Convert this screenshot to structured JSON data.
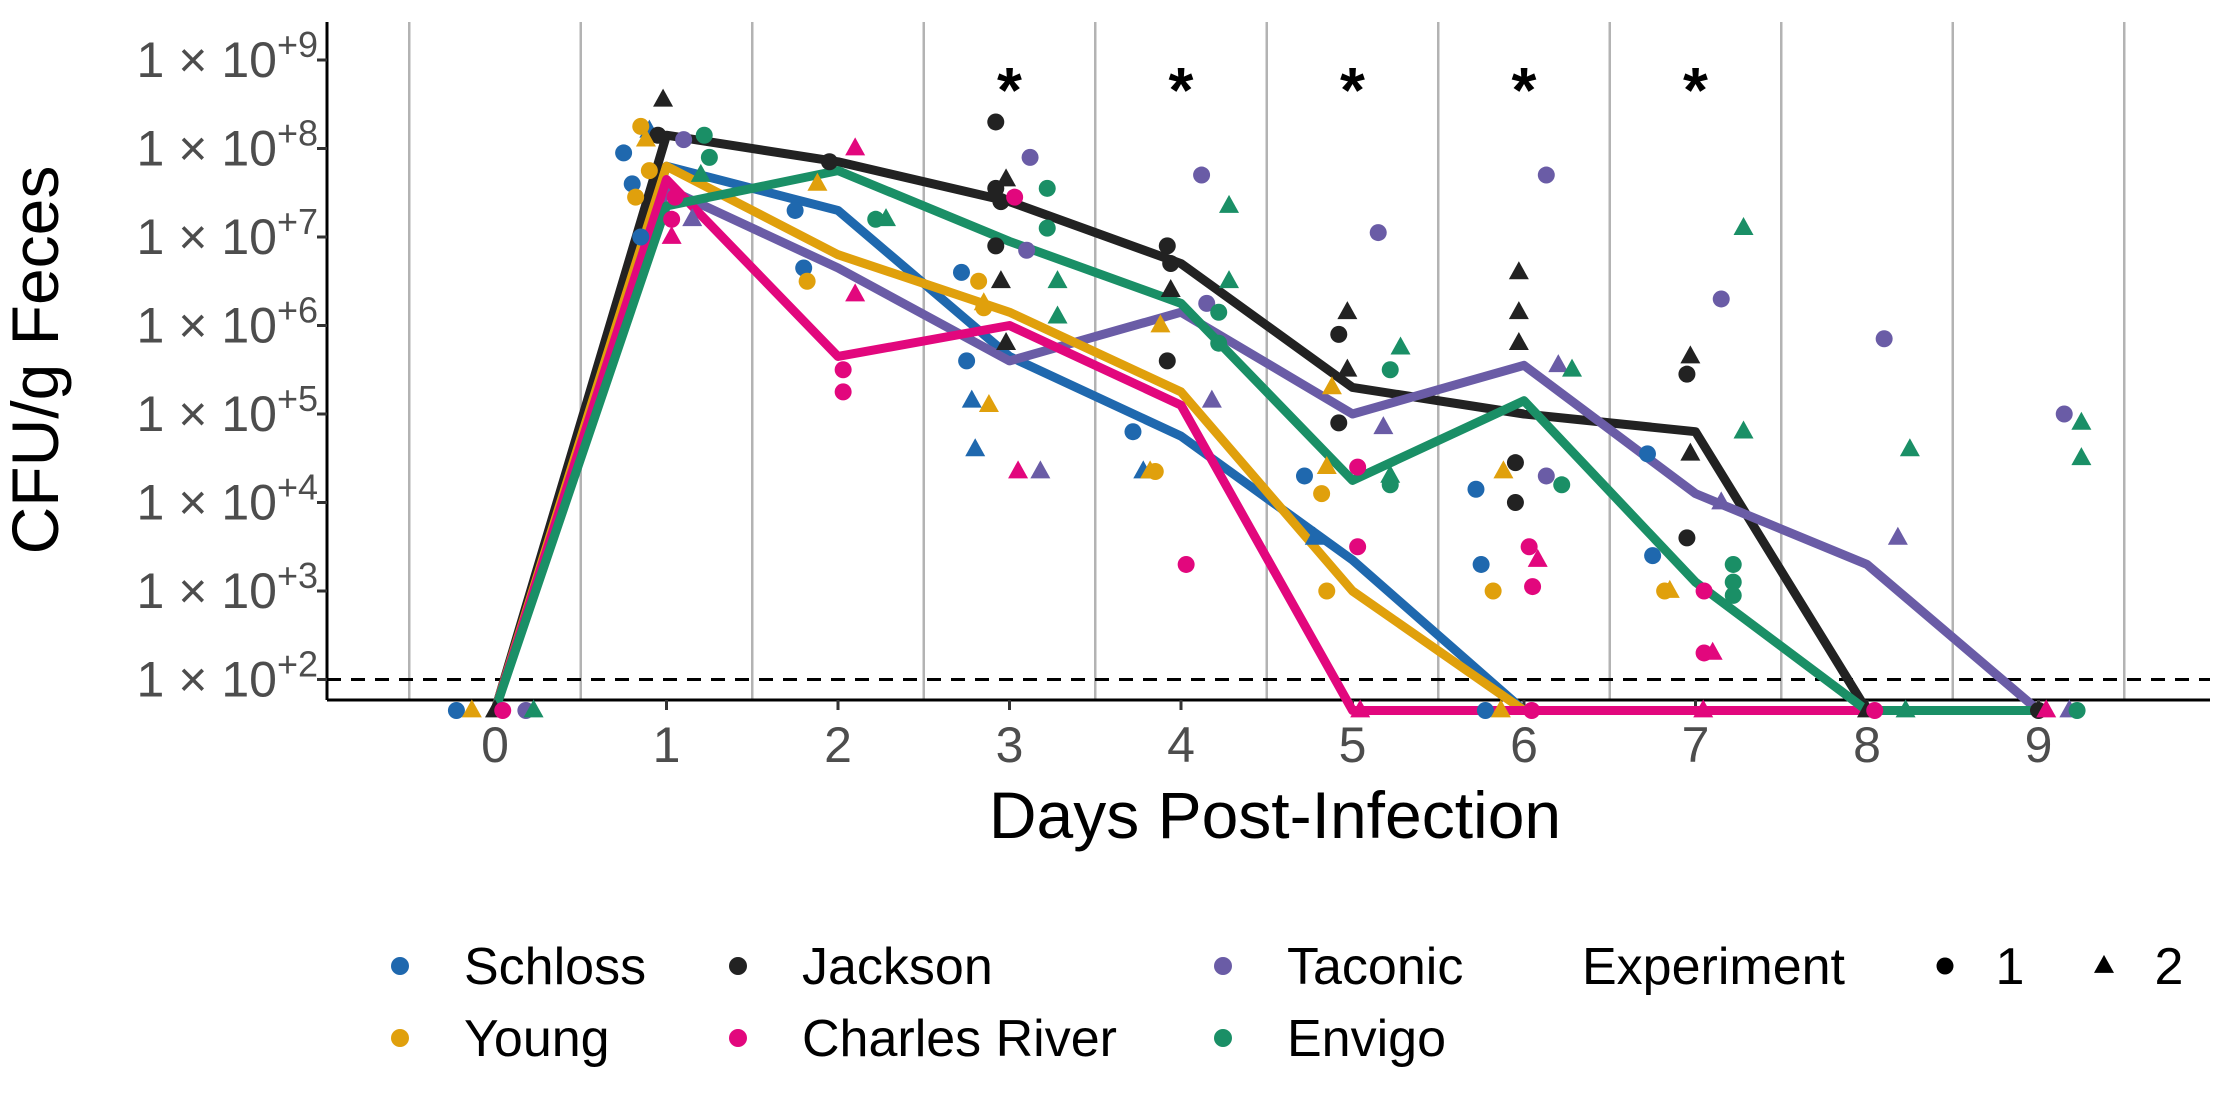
{
  "chart_data": {
    "type": "line",
    "title": "",
    "xlabel": "Days Post-Infection",
    "ylabel": "CFU/g Feces",
    "x_ticks": [
      "0",
      "1",
      "2",
      "3",
      "4",
      "5",
      "6",
      "7",
      "8",
      "9"
    ],
    "xlim": [
      -1,
      9.8
    ],
    "y_scale": "log10",
    "ylim_log10": [
      1.65,
      9.35
    ],
    "y_ticks": [
      {
        "exp": 2,
        "label": "1 × 10",
        "sup": "+2"
      },
      {
        "exp": 3,
        "label": "1 × 10",
        "sup": "+3"
      },
      {
        "exp": 4,
        "label": "1 × 10",
        "sup": "+4"
      },
      {
        "exp": 5,
        "label": "1 × 10",
        "sup": "+5"
      },
      {
        "exp": 6,
        "label": "1 × 10",
        "sup": "+6"
      },
      {
        "exp": 7,
        "label": "1 × 10",
        "sup": "+7"
      },
      {
        "exp": 8,
        "label": "1 × 10",
        "sup": "+8"
      },
      {
        "exp": 9,
        "label": "1 × 10",
        "sup": "+9"
      }
    ],
    "limit_of_detection_log10": 2.0,
    "significance_days": [
      3,
      4,
      5,
      6,
      7
    ],
    "significance_symbol": "*",
    "grid": "vertical gridlines between days",
    "legend_position": "bottom",
    "series": [
      {
        "name": "Schloss",
        "color": "#1F68AE",
        "x": [
          0,
          1,
          2,
          3,
          4,
          5,
          6
        ],
        "log10_values": [
          1.65,
          7.8,
          7.3,
          5.65,
          4.75,
          3.35,
          1.65
        ]
      },
      {
        "name": "Jackson",
        "color": "#222222",
        "x": [
          0,
          1,
          2,
          3,
          4,
          5,
          6,
          7,
          8,
          9
        ],
        "log10_values": [
          1.65,
          8.15,
          7.85,
          7.4,
          6.7,
          5.3,
          5.0,
          4.8,
          1.65,
          1.65
        ]
      },
      {
        "name": "Taconic",
        "color": "#6A5CA6",
        "x": [
          0,
          1,
          2,
          3,
          4,
          5,
          6,
          7,
          8,
          9
        ],
        "log10_values": [
          1.65,
          7.55,
          6.65,
          5.6,
          6.15,
          5.0,
          5.55,
          4.1,
          3.3,
          1.65
        ]
      },
      {
        "name": "Young",
        "color": "#E0A00C",
        "x": [
          0,
          1,
          2,
          3,
          4,
          5,
          6
        ],
        "log10_values": [
          1.65,
          7.8,
          6.8,
          6.15,
          5.25,
          3.0,
          1.65
        ]
      },
      {
        "name": "Charles River",
        "color": "#E2077D",
        "x": [
          0,
          1,
          2,
          3,
          4,
          5,
          6,
          7,
          8,
          9
        ],
        "log10_values": [
          1.65,
          7.65,
          5.65,
          6.0,
          5.1,
          1.65,
          1.65,
          1.65,
          1.65,
          1.65
        ]
      },
      {
        "name": "Envigo",
        "color": "#1A8F66",
        "x": [
          0,
          1,
          2,
          3,
          4,
          5,
          6,
          7,
          8,
          9
        ],
        "log10_values": [
          1.65,
          7.35,
          7.75,
          6.95,
          6.25,
          4.25,
          5.15,
          3.1,
          1.65,
          1.65
        ]
      }
    ],
    "points": [
      {
        "s": 0,
        "d": 1,
        "o": -0.25,
        "v": 7.95,
        "e": 1
      },
      {
        "s": 0,
        "d": 1,
        "o": -0.2,
        "v": 7.6,
        "e": 1
      },
      {
        "s": 0,
        "d": 1,
        "o": -0.15,
        "v": 7.0,
        "e": 1
      },
      {
        "s": 0,
        "d": 1,
        "o": -0.1,
        "v": 8.2,
        "e": 2
      },
      {
        "s": 0,
        "d": 2,
        "o": -0.25,
        "v": 7.3,
        "e": 1
      },
      {
        "s": 0,
        "d": 2,
        "o": -0.2,
        "v": 6.65,
        "e": 1
      },
      {
        "s": 0,
        "d": 3,
        "o": -0.28,
        "v": 6.6,
        "e": 1
      },
      {
        "s": 0,
        "d": 3,
        "o": -0.25,
        "v": 5.6,
        "e": 1
      },
      {
        "s": 0,
        "d": 3,
        "o": -0.22,
        "v": 5.15,
        "e": 2
      },
      {
        "s": 0,
        "d": 3,
        "o": -0.2,
        "v": 4.6,
        "e": 2
      },
      {
        "s": 0,
        "d": 4,
        "o": -0.28,
        "v": 4.8,
        "e": 1
      },
      {
        "s": 0,
        "d": 4,
        "o": -0.22,
        "v": 4.35,
        "e": 2
      },
      {
        "s": 0,
        "d": 5,
        "o": -0.28,
        "v": 4.3,
        "e": 1
      },
      {
        "s": 0,
        "d": 5,
        "o": -0.22,
        "v": 3.6,
        "e": 2
      },
      {
        "s": 0,
        "d": 6,
        "o": -0.28,
        "v": 4.15,
        "e": 1
      },
      {
        "s": 0,
        "d": 6,
        "o": -0.25,
        "v": 3.3,
        "e": 1
      },
      {
        "s": 0,
        "d": 7,
        "o": -0.28,
        "v": 4.55,
        "e": 1
      },
      {
        "s": 0,
        "d": 7,
        "o": -0.25,
        "v": 3.4,
        "e": 1
      },
      {
        "s": 1,
        "d": 1,
        "o": -0.05,
        "v": 8.15,
        "e": 1
      },
      {
        "s": 1,
        "d": 1,
        "o": -0.02,
        "v": 8.55,
        "e": 2
      },
      {
        "s": 1,
        "d": 2,
        "o": -0.05,
        "v": 7.85,
        "e": 1
      },
      {
        "s": 1,
        "d": 3,
        "o": -0.08,
        "v": 8.3,
        "e": 1
      },
      {
        "s": 1,
        "d": 3,
        "o": -0.08,
        "v": 7.55,
        "e": 1
      },
      {
        "s": 1,
        "d": 3,
        "o": -0.05,
        "v": 7.4,
        "e": 1
      },
      {
        "s": 1,
        "d": 3,
        "o": -0.08,
        "v": 6.9,
        "e": 1
      },
      {
        "s": 1,
        "d": 3,
        "o": -0.02,
        "v": 7.65,
        "e": 2
      },
      {
        "s": 1,
        "d": 3,
        "o": -0.05,
        "v": 6.5,
        "e": 2
      },
      {
        "s": 1,
        "d": 3,
        "o": -0.02,
        "v": 5.8,
        "e": 2
      },
      {
        "s": 1,
        "d": 4,
        "o": -0.08,
        "v": 6.9,
        "e": 1
      },
      {
        "s": 1,
        "d": 4,
        "o": -0.06,
        "v": 6.7,
        "e": 1
      },
      {
        "s": 1,
        "d": 4,
        "o": -0.08,
        "v": 5.6,
        "e": 1
      },
      {
        "s": 1,
        "d": 4,
        "o": -0.06,
        "v": 6.4,
        "e": 2
      },
      {
        "s": 1,
        "d": 5,
        "o": -0.08,
        "v": 5.9,
        "e": 1
      },
      {
        "s": 1,
        "d": 5,
        "o": -0.08,
        "v": 4.9,
        "e": 1
      },
      {
        "s": 1,
        "d": 5,
        "o": -0.03,
        "v": 6.15,
        "e": 2
      },
      {
        "s": 1,
        "d": 5,
        "o": -0.03,
        "v": 5.5,
        "e": 2
      },
      {
        "s": 1,
        "d": 6,
        "o": -0.05,
        "v": 4.45,
        "e": 1
      },
      {
        "s": 1,
        "d": 6,
        "o": -0.05,
        "v": 4.0,
        "e": 1
      },
      {
        "s": 1,
        "d": 6,
        "o": -0.03,
        "v": 6.6,
        "e": 2
      },
      {
        "s": 1,
        "d": 6,
        "o": -0.03,
        "v": 6.15,
        "e": 2
      },
      {
        "s": 1,
        "d": 6,
        "o": -0.03,
        "v": 5.8,
        "e": 2
      },
      {
        "s": 1,
        "d": 7,
        "o": -0.05,
        "v": 5.45,
        "e": 1
      },
      {
        "s": 1,
        "d": 7,
        "o": -0.05,
        "v": 3.6,
        "e": 1
      },
      {
        "s": 1,
        "d": 7,
        "o": -0.03,
        "v": 5.65,
        "e": 2
      },
      {
        "s": 1,
        "d": 7,
        "o": -0.03,
        "v": 4.55,
        "e": 2
      },
      {
        "s": 2,
        "d": 1,
        "o": 0.1,
        "v": 8.1,
        "e": 1
      },
      {
        "s": 2,
        "d": 1,
        "o": 0.15,
        "v": 7.2,
        "e": 2
      },
      {
        "s": 2,
        "d": 3,
        "o": 0.12,
        "v": 7.9,
        "e": 1
      },
      {
        "s": 2,
        "d": 3,
        "o": 0.1,
        "v": 6.85,
        "e": 1
      },
      {
        "s": 2,
        "d": 3,
        "o": 0.18,
        "v": 4.35,
        "e": 2
      },
      {
        "s": 2,
        "d": 4,
        "o": 0.12,
        "v": 7.7,
        "e": 1
      },
      {
        "s": 2,
        "d": 4,
        "o": 0.15,
        "v": 6.25,
        "e": 1
      },
      {
        "s": 2,
        "d": 4,
        "o": 0.18,
        "v": 5.15,
        "e": 2
      },
      {
        "s": 2,
        "d": 5,
        "o": 0.15,
        "v": 7.05,
        "e": 1
      },
      {
        "s": 2,
        "d": 5,
        "o": 0.18,
        "v": 4.85,
        "e": 2
      },
      {
        "s": 2,
        "d": 6,
        "o": 0.13,
        "v": 7.7,
        "e": 1
      },
      {
        "s": 2,
        "d": 6,
        "o": 0.13,
        "v": 4.3,
        "e": 1
      },
      {
        "s": 2,
        "d": 6,
        "o": 0.2,
        "v": 5.55,
        "e": 2
      },
      {
        "s": 2,
        "d": 7,
        "o": 0.15,
        "v": 6.3,
        "e": 1
      },
      {
        "s": 2,
        "d": 7,
        "o": 0.15,
        "v": 4.0,
        "e": 2
      },
      {
        "s": 2,
        "d": 8,
        "o": 0.1,
        "v": 5.85,
        "e": 1
      },
      {
        "s": 2,
        "d": 8,
        "o": 0.18,
        "v": 3.6,
        "e": 2
      },
      {
        "s": 2,
        "d": 9,
        "o": 0.15,
        "v": 5.0,
        "e": 1
      },
      {
        "s": 3,
        "d": 1,
        "o": -0.15,
        "v": 8.25,
        "e": 1
      },
      {
        "s": 3,
        "d": 1,
        "o": -0.1,
        "v": 7.75,
        "e": 1
      },
      {
        "s": 3,
        "d": 1,
        "o": -0.18,
        "v": 7.45,
        "e": 1
      },
      {
        "s": 3,
        "d": 1,
        "o": -0.12,
        "v": 8.1,
        "e": 2
      },
      {
        "s": 3,
        "d": 2,
        "o": -0.18,
        "v": 6.5,
        "e": 1
      },
      {
        "s": 3,
        "d": 2,
        "o": -0.12,
        "v": 7.6,
        "e": 2
      },
      {
        "s": 3,
        "d": 3,
        "o": -0.18,
        "v": 6.5,
        "e": 1
      },
      {
        "s": 3,
        "d": 3,
        "o": -0.15,
        "v": 6.2,
        "e": 1
      },
      {
        "s": 3,
        "d": 3,
        "o": -0.12,
        "v": 5.1,
        "e": 2
      },
      {
        "s": 3,
        "d": 3,
        "o": -0.15,
        "v": 6.25,
        "e": 2
      },
      {
        "s": 3,
        "d": 4,
        "o": -0.15,
        "v": 4.35,
        "e": 1
      },
      {
        "s": 3,
        "d": 4,
        "o": -0.18,
        "v": 4.35,
        "e": 2
      },
      {
        "s": 3,
        "d": 4,
        "o": -0.12,
        "v": 6.0,
        "e": 2
      },
      {
        "s": 3,
        "d": 5,
        "o": -0.18,
        "v": 4.1,
        "e": 1
      },
      {
        "s": 3,
        "d": 5,
        "o": -0.15,
        "v": 3.0,
        "e": 1
      },
      {
        "s": 3,
        "d": 5,
        "o": -0.12,
        "v": 5.3,
        "e": 2
      },
      {
        "s": 3,
        "d": 5,
        "o": -0.15,
        "v": 4.4,
        "e": 2
      },
      {
        "s": 3,
        "d": 6,
        "o": -0.18,
        "v": 3.0,
        "e": 1
      },
      {
        "s": 3,
        "d": 6,
        "o": -0.12,
        "v": 4.35,
        "e": 2
      },
      {
        "s": 3,
        "d": 7,
        "o": -0.18,
        "v": 3.0,
        "e": 1
      },
      {
        "s": 3,
        "d": 7,
        "o": -0.15,
        "v": 3.0,
        "e": 2
      },
      {
        "s": 4,
        "d": 1,
        "o": 0.03,
        "v": 7.2,
        "e": 1
      },
      {
        "s": 4,
        "d": 1,
        "o": 0.05,
        "v": 7.45,
        "e": 1
      },
      {
        "s": 4,
        "d": 1,
        "o": 0.03,
        "v": 7.0,
        "e": 2
      },
      {
        "s": 4,
        "d": 2,
        "o": 0.03,
        "v": 5.5,
        "e": 1
      },
      {
        "s": 4,
        "d": 2,
        "o": 0.03,
        "v": 5.25,
        "e": 1
      },
      {
        "s": 4,
        "d": 2,
        "o": 0.1,
        "v": 8.0,
        "e": 2
      },
      {
        "s": 4,
        "d": 2,
        "o": 0.1,
        "v": 6.35,
        "e": 2
      },
      {
        "s": 4,
        "d": 3,
        "o": 0.03,
        "v": 7.45,
        "e": 1
      },
      {
        "s": 4,
        "d": 3,
        "o": 0.05,
        "v": 4.35,
        "e": 2
      },
      {
        "s": 4,
        "d": 4,
        "o": 0.03,
        "v": 3.3,
        "e": 1
      },
      {
        "s": 4,
        "d": 5,
        "o": 0.03,
        "v": 4.4,
        "e": 1
      },
      {
        "s": 4,
        "d": 5,
        "o": 0.03,
        "v": 3.5,
        "e": 1
      },
      {
        "s": 4,
        "d": 6,
        "o": 0.03,
        "v": 3.5,
        "e": 1
      },
      {
        "s": 4,
        "d": 6,
        "o": 0.05,
        "v": 3.05,
        "e": 1
      },
      {
        "s": 4,
        "d": 6,
        "o": 0.08,
        "v": 3.35,
        "e": 2
      },
      {
        "s": 4,
        "d": 7,
        "o": 0.05,
        "v": 3.0,
        "e": 1
      },
      {
        "s": 4,
        "d": 7,
        "o": 0.05,
        "v": 2.3,
        "e": 1
      },
      {
        "s": 4,
        "d": 7,
        "o": 0.1,
        "v": 2.3,
        "e": 2
      },
      {
        "s": 5,
        "d": 1,
        "o": 0.22,
        "v": 8.15,
        "e": 1
      },
      {
        "s": 5,
        "d": 1,
        "o": 0.25,
        "v": 7.9,
        "e": 1
      },
      {
        "s": 5,
        "d": 1,
        "o": 0.2,
        "v": 7.7,
        "e": 2
      },
      {
        "s": 5,
        "d": 2,
        "o": 0.22,
        "v": 7.2,
        "e": 1
      },
      {
        "s": 5,
        "d": 2,
        "o": 0.28,
        "v": 7.2,
        "e": 2
      },
      {
        "s": 5,
        "d": 3,
        "o": 0.22,
        "v": 7.55,
        "e": 1
      },
      {
        "s": 5,
        "d": 3,
        "o": 0.22,
        "v": 7.1,
        "e": 1
      },
      {
        "s": 5,
        "d": 3,
        "o": 0.28,
        "v": 6.5,
        "e": 2
      },
      {
        "s": 5,
        "d": 3,
        "o": 0.28,
        "v": 6.1,
        "e": 2
      },
      {
        "s": 5,
        "d": 4,
        "o": 0.22,
        "v": 6.15,
        "e": 1
      },
      {
        "s": 5,
        "d": 4,
        "o": 0.22,
        "v": 5.8,
        "e": 1
      },
      {
        "s": 5,
        "d": 4,
        "o": 0.28,
        "v": 7.35,
        "e": 2
      },
      {
        "s": 5,
        "d": 4,
        "o": 0.28,
        "v": 6.5,
        "e": 2
      },
      {
        "s": 5,
        "d": 5,
        "o": 0.22,
        "v": 5.5,
        "e": 1
      },
      {
        "s": 5,
        "d": 5,
        "o": 0.22,
        "v": 4.2,
        "e": 1
      },
      {
        "s": 5,
        "d": 5,
        "o": 0.28,
        "v": 5.75,
        "e": 2
      },
      {
        "s": 5,
        "d": 5,
        "o": 0.22,
        "v": 4.3,
        "e": 2
      },
      {
        "s": 5,
        "d": 6,
        "o": 0.22,
        "v": 4.2,
        "e": 1
      },
      {
        "s": 5,
        "d": 6,
        "o": 0.28,
        "v": 5.5,
        "e": 2
      },
      {
        "s": 5,
        "d": 7,
        "o": 0.22,
        "v": 3.3,
        "e": 1
      },
      {
        "s": 5,
        "d": 7,
        "o": 0.22,
        "v": 3.1,
        "e": 1
      },
      {
        "s": 5,
        "d": 7,
        "o": 0.22,
        "v": 2.95,
        "e": 1
      },
      {
        "s": 5,
        "d": 7,
        "o": 0.28,
        "v": 7.1,
        "e": 2
      },
      {
        "s": 5,
        "d": 7,
        "o": 0.28,
        "v": 4.8,
        "e": 2
      },
      {
        "s": 5,
        "d": 8,
        "o": 0.25,
        "v": 4.6,
        "e": 2
      },
      {
        "s": 5,
        "d": 9,
        "o": 0.25,
        "v": 4.9,
        "e": 2
      },
      {
        "s": 5,
        "d": 9,
        "o": 0.25,
        "v": 4.5,
        "e": 2
      }
    ],
    "legend": {
      "color_entries": [
        {
          "label": "Schloss",
          "series": 0
        },
        {
          "label": "Young",
          "series": 3
        },
        {
          "label": "Jackson",
          "series": 1
        },
        {
          "label": "Charles River",
          "series": 4
        },
        {
          "label": "Taconic",
          "series": 2
        },
        {
          "label": "Envigo",
          "series": 5
        }
      ],
      "shape_title": "Experiment",
      "shape_entries": [
        {
          "label": "1",
          "shape": "circle"
        },
        {
          "label": "2",
          "shape": "triangle"
        }
      ]
    }
  }
}
